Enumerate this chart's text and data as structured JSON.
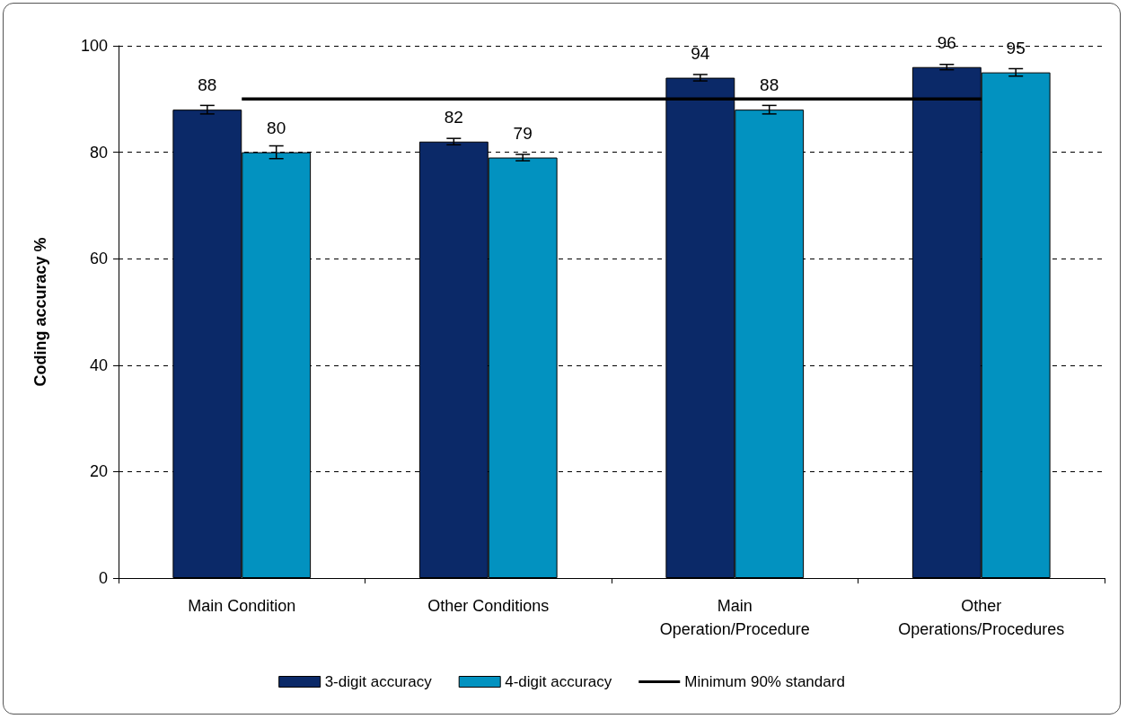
{
  "chart_data": {
    "type": "bar",
    "ylabel": "Coding accuracy %",
    "categories": [
      "Main Condition",
      "Other Conditions",
      "Main\nOperation/Procedure",
      "Other\nOperations/Procedures"
    ],
    "series": [
      {
        "name": "3-digit accuracy",
        "color": "#0b2968",
        "values": [
          88,
          82,
          94,
          96
        ],
        "errors": [
          0.8,
          0.6,
          0.6,
          0.5
        ],
        "value_labels": [
          "88",
          "82",
          "94",
          "96"
        ]
      },
      {
        "name": "4-digit accuracy",
        "color": "#0292c0",
        "values": [
          80,
          79,
          88,
          95
        ],
        "errors": [
          1.2,
          0.6,
          0.8,
          0.7
        ],
        "value_labels": [
          "80",
          "79",
          "88",
          "95"
        ]
      },
      {
        "name": "Minimum 90% standard",
        "type": "line",
        "color": "#000000",
        "values": [
          90,
          90,
          90,
          90
        ],
        "marker": "none"
      }
    ],
    "ylim": [
      0,
      100
    ],
    "yticks": [
      0,
      20,
      40,
      60,
      80,
      100
    ],
    "grid": "y",
    "legend": "bottom"
  }
}
